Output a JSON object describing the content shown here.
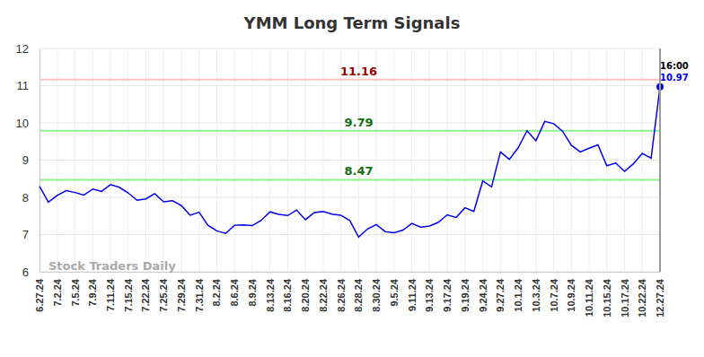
{
  "chart_data": {
    "type": "line",
    "title": "YMM Long Term Signals",
    "watermark": "Stock Traders Daily",
    "categories": [
      "6.27.24",
      null,
      "7.2.24",
      null,
      "7.5.24",
      null,
      "7.9.24",
      null,
      "7.11.24",
      null,
      "7.15.24",
      null,
      "7.22.24",
      null,
      "7.25.24",
      null,
      "7.29.24",
      null,
      "7.31.24",
      null,
      "8.2.24",
      null,
      "8.6.24",
      null,
      "8.9.24",
      null,
      "8.13.24",
      null,
      "8.16.24",
      null,
      "8.20.24",
      null,
      "8.22.24",
      null,
      "8.26.24",
      null,
      "8.28.24",
      null,
      "8.30.24",
      null,
      "9.5.24",
      null,
      "9.11.24",
      null,
      "9.13.24",
      null,
      "9.17.24",
      null,
      "9.19.24",
      null,
      "9.24.24",
      null,
      "9.27.24",
      null,
      "10.1.24",
      null,
      "10.3.24",
      null,
      "10.7.24",
      null,
      "10.9.24",
      null,
      "10.11.24",
      null,
      "10.15.24",
      null,
      "10.17.24",
      null,
      "10.22.24",
      null,
      "12.27.24"
    ],
    "values": [
      8.3,
      7.87,
      8.05,
      8.18,
      8.13,
      8.06,
      8.22,
      8.16,
      8.34,
      8.27,
      8.12,
      7.92,
      7.96,
      8.1,
      7.88,
      7.91,
      7.78,
      7.52,
      7.6,
      7.25,
      7.1,
      7.03,
      7.25,
      7.26,
      7.24,
      7.38,
      7.61,
      7.54,
      7.51,
      7.66,
      7.4,
      7.59,
      7.62,
      7.55,
      7.52,
      7.38,
      6.93,
      7.15,
      7.27,
      7.08,
      7.05,
      7.12,
      7.3,
      7.2,
      7.23,
      7.33,
      7.53,
      7.46,
      7.72,
      7.62,
      8.44,
      8.28,
      9.22,
      9.02,
      9.33,
      9.79,
      9.52,
      10.04,
      9.98,
      9.78,
      9.4,
      9.22,
      9.32,
      9.41,
      8.85,
      8.92,
      8.7,
      8.9,
      9.18,
      9.05,
      10.97
    ],
    "color": "#0000ee",
    "ylim": [
      6,
      12
    ],
    "yticks": [
      6,
      7,
      8,
      9,
      10,
      11,
      12
    ],
    "grid": true,
    "reference_lines": [
      {
        "value": 11.16,
        "color": "#ffc0c0"
      },
      {
        "value": 9.79,
        "color": "#90ee90"
      },
      {
        "value": 8.47,
        "color": "#90ee90"
      }
    ],
    "annotations": [
      {
        "text": "16:00"
      }
    ]
  }
}
